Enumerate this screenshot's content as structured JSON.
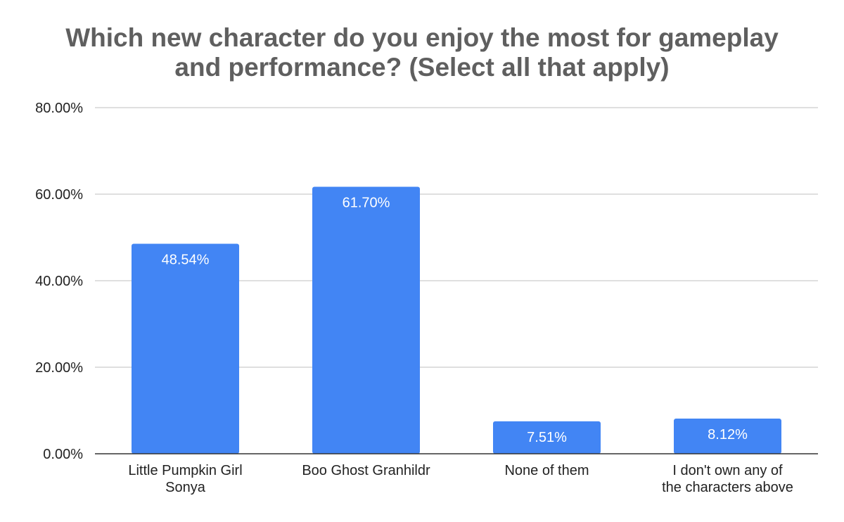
{
  "chart_data": {
    "type": "bar",
    "title": "Which new character do you enjoy the most for gameplay and performance? (Select all that apply)",
    "title_lines": [
      "Which new character do you enjoy the most for gameplay",
      "and performance? (Select all that apply)"
    ],
    "xlabel": "",
    "ylabel": "",
    "ylim": [
      0,
      80
    ],
    "y_ticks": [
      0,
      20,
      40,
      60,
      80
    ],
    "y_tick_labels": [
      "0.00%",
      "20.00%",
      "40.00%",
      "60.00%",
      "80.00%"
    ],
    "categories": [
      "Little Pumpkin Girl Sonya",
      "Boo Ghost Granhildr",
      "None of them",
      "I don't own any of the characters above"
    ],
    "category_label_lines": [
      [
        "Little Pumpkin Girl",
        "Sonya"
      ],
      [
        "Boo Ghost Granhildr"
      ],
      [
        "None of them"
      ],
      [
        "I don't own any of",
        "the characters above"
      ]
    ],
    "values": [
      48.54,
      61.7,
      7.51,
      8.12
    ],
    "data_labels": [
      "48.54%",
      "61.70%",
      "7.51%",
      "8.12%"
    ],
    "grid": true,
    "legend": "none",
    "colors": {
      "bar": "#4285f4",
      "grid": "#cccccc",
      "axis": "#333333",
      "title": "#5f5f5f",
      "text": "#222222",
      "data_label": "#ffffff"
    }
  }
}
